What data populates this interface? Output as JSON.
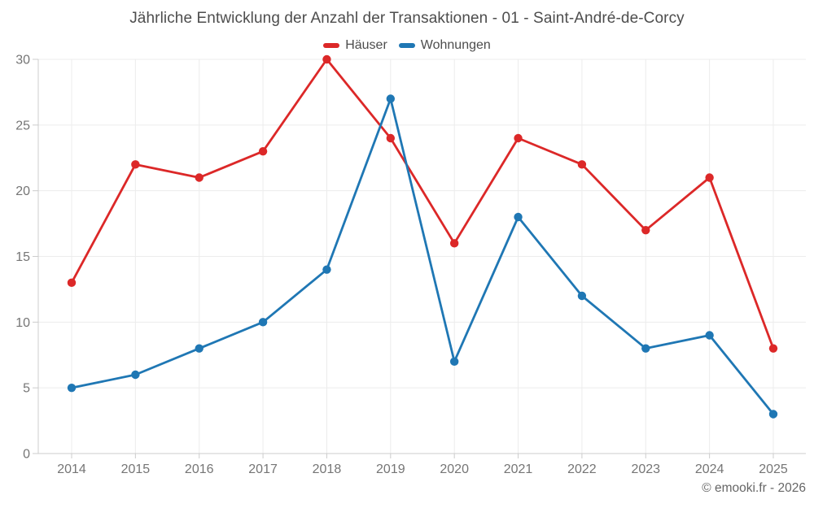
{
  "page": {
    "copyright": "© emooki.fr - 2026"
  },
  "style": {
    "grid_color": "#ececec",
    "axis_color": "#cccccc",
    "tick_label_color": "#757575",
    "title_color": "#4d4d4d",
    "background": "#ffffff"
  },
  "chart_data": {
    "type": "line",
    "title": "Jährliche Entwicklung der Anzahl der Transaktionen - 01 - Saint-André-de-Corcy",
    "xlabel": "",
    "ylabel": "",
    "x": [
      2014,
      2015,
      2016,
      2017,
      2018,
      2019,
      2020,
      2021,
      2022,
      2023,
      2024,
      2025
    ],
    "series": [
      {
        "name": "Häuser",
        "color": "#dc2828",
        "values": [
          13,
          22,
          21,
          23,
          30,
          24,
          16,
          24,
          22,
          17,
          21,
          8
        ]
      },
      {
        "name": "Wohnungen",
        "color": "#1f77b4",
        "values": [
          5,
          6,
          8,
          10,
          14,
          27,
          7,
          18,
          12,
          8,
          9,
          3
        ]
      }
    ],
    "ylim": [
      0,
      30
    ],
    "yticks": [
      0,
      5,
      10,
      15,
      20,
      25,
      30
    ],
    "grid": "on",
    "legend_position": "top-center",
    "markers": "circle"
  }
}
